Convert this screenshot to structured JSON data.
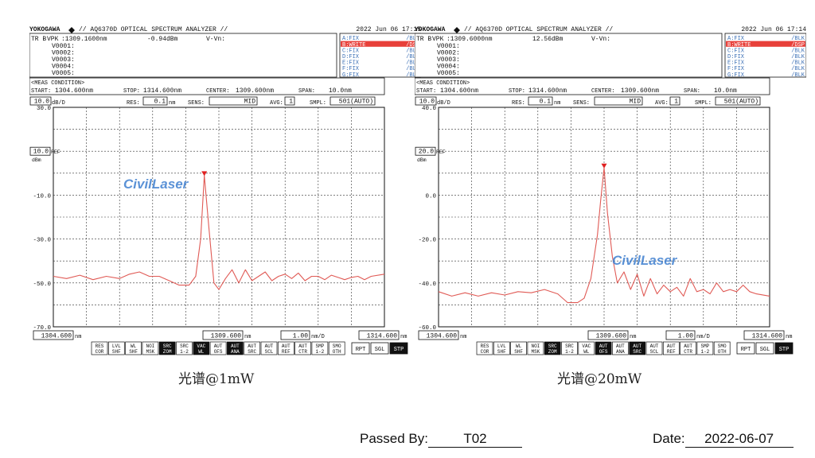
{
  "screens": [
    {
      "brand": "YOKOGAWA",
      "model": "// AQ6370D OPTICAL SPECTRUM ANALYZER //",
      "timestamp": "2022 Jun 06 17:15",
      "header_tr": "TR B",
      "header_marker_label": "VPK",
      "marker_wavelength": ":1309.1600nm",
      "marker_level": "-0.94dBm",
      "v_vn_label": "V-Vn:",
      "v_markers": [
        "V0001:",
        "V0002:",
        "V0003:",
        "V0004:",
        "V0005:"
      ],
      "traces": [
        {
          "label": "A:FIX",
          "mode": "/BLK",
          "active": false
        },
        {
          "label": "B:WRITE",
          "mode": "/DSP",
          "active": true
        },
        {
          "label": "C:FIX",
          "mode": "/BLK",
          "active": false
        },
        {
          "label": "D:FIX",
          "mode": "/BLK",
          "active": false
        },
        {
          "label": "E:FIX",
          "mode": "/BLK",
          "active": false
        },
        {
          "label": "F:FIX",
          "mode": "/BLK",
          "active": false
        },
        {
          "label": "G:FIX",
          "mode": "/BLK",
          "active": false
        }
      ],
      "meas_condition_label": "<MEAS CONDITION>",
      "start_label": "START:",
      "start_value": "1304.600nm",
      "stop_label": "STOP:",
      "stop_value": "1314.600nm",
      "center_label": "CENTER:",
      "center_value": "1309.600nm",
      "span_label": "SPAN:",
      "span_value": "10.0nm",
      "scale_value": "10.0",
      "scale_unit": "dB/D",
      "res_label": "RES:",
      "res_value": "0.1",
      "res_unit": "nm",
      "sens_label": "SENS:",
      "sens_value": "MID",
      "avg_label": "AVG:",
      "avg_value": "1",
      "smpl_label": "SMPL:",
      "smpl_value": "501(AUTO)",
      "ref_value": "10.0",
      "ref_unit": "dBm",
      "ref_label": "REF",
      "bottom_start": "1304.600",
      "bottom_center": "1309.600",
      "bottom_per_div": "1.00",
      "bottom_stop": "1314.600",
      "unit_nm": "nm",
      "unit_nmd": "nm/D",
      "softkeys": [
        [
          "RES",
          "COR"
        ],
        [
          "LVL",
          "SHF"
        ],
        [
          "WL",
          "SHF"
        ],
        [
          "NOI",
          "MSK"
        ],
        [
          "SRC",
          "ZOM"
        ],
        [
          "SRC",
          "1-2"
        ],
        [
          "VAC",
          "WL"
        ],
        [
          "AUT",
          "OFS"
        ],
        [
          "AUT",
          "ANA"
        ],
        [
          "AUT",
          "SRC"
        ],
        [
          "AUT",
          "SCL"
        ],
        [
          "AUT",
          "REF"
        ],
        [
          "AUT",
          "CTR"
        ],
        [
          "SMP",
          "1-2"
        ],
        [
          "SMO",
          "OTH"
        ]
      ],
      "softkeys_active": [
        4,
        6,
        8
      ],
      "action_keys": [
        "RPT",
        "SGL",
        "STP"
      ],
      "watermark": "CivilLaser",
      "caption": "光谱@1mW",
      "chart_data": {
        "type": "line",
        "xlabel": "",
        "ylabel": "",
        "xlim": [
          1304.6,
          1314.6
        ],
        "ylim": [
          -70,
          30
        ],
        "y_ticks": [
          30,
          -10,
          -30,
          -50,
          -70
        ],
        "y_tick_labels": [
          "30.0",
          "-10.0",
          "-30.0",
          "-50.0",
          "-70.0"
        ],
        "grid": true,
        "series": [
          {
            "x": [
              1304.6,
              1305.0,
              1305.4,
              1305.8,
              1306.2,
              1306.6,
              1306.9,
              1307.2,
              1307.5,
              1307.8,
              1308.1,
              1308.4,
              1308.7,
              1308.9,
              1309.05,
              1309.16,
              1309.3,
              1309.45,
              1309.6,
              1309.8,
              1310.0,
              1310.2,
              1310.4,
              1310.6,
              1310.8,
              1311.0,
              1311.2,
              1311.4,
              1311.6,
              1311.8,
              1312.0,
              1312.2,
              1312.4,
              1312.6,
              1312.8,
              1313.0,
              1313.2,
              1313.4,
              1313.6,
              1313.8,
              1314.0,
              1314.2,
              1314.6
            ],
            "y": [
              -47,
              -48,
              -46.5,
              -48.5,
              -47,
              -48,
              -46,
              -45,
              -47,
              -47,
              -49,
              -51,
              -51,
              -47,
              -30,
              -1,
              -25,
              -50,
              -53,
              -48,
              -44,
              -50,
              -44,
              -49,
              -47,
              -45,
              -49,
              -47,
              -46,
              -48,
              -45.5,
              -49,
              -47,
              -47,
              -48.5,
              -46.5,
              -47.5,
              -48.5,
              -47.5,
              -47,
              -48.5,
              -47,
              -46
            ]
          }
        ],
        "marker": {
          "x": 1309.16,
          "y": -0.94
        }
      }
    },
    {
      "brand": "YOKOGAWA",
      "model": "// AQ6370D OPTICAL SPECTRUM ANALYZER //",
      "timestamp": "2022 Jun 06 17:14",
      "header_tr": "TR B",
      "header_marker_label": "VPK",
      "marker_wavelength": ":1309.6000nm",
      "marker_level": "12.56dBm",
      "v_vn_label": "V-Vn:",
      "v_markers": [
        "V0001:",
        "V0002:",
        "V0003:",
        "V0004:",
        "V0005:"
      ],
      "traces": [
        {
          "label": "A:FIX",
          "mode": "/BLK",
          "active": false
        },
        {
          "label": "B:WRITE",
          "mode": "/DSP",
          "active": true
        },
        {
          "label": "C:FIX",
          "mode": "/BLK",
          "active": false
        },
        {
          "label": "D:FIX",
          "mode": "/BLK",
          "active": false
        },
        {
          "label": "E:FIX",
          "mode": "/BLK",
          "active": false
        },
        {
          "label": "F:FIX",
          "mode": "/BLK",
          "active": false
        },
        {
          "label": "G:FIX",
          "mode": "/BLK",
          "active": false
        }
      ],
      "meas_condition_label": "<MEAS CONDITION>",
      "start_label": "START:",
      "start_value": "1304.600nm",
      "stop_label": "STOP:",
      "stop_value": "1314.600nm",
      "center_label": "CENTER:",
      "center_value": "1309.600nm",
      "span_label": "SPAN:",
      "span_value": "10.0nm",
      "scale_value": "10.0",
      "scale_unit": "dB/D",
      "res_label": "RES:",
      "res_value": "0.1",
      "res_unit": "nm",
      "sens_label": "SENS:",
      "sens_value": "MID",
      "avg_label": "AVG:",
      "avg_value": "1",
      "smpl_label": "SMPL:",
      "smpl_value": "501(AUTO)",
      "ref_value": "20.0",
      "ref_unit": "dBm",
      "ref_label": "REF",
      "bottom_start": "1304.600",
      "bottom_center": "1309.600",
      "bottom_per_div": "1.00",
      "bottom_stop": "1314.600",
      "unit_nm": "nm",
      "unit_nmd": "nm/D",
      "softkeys": [
        [
          "RES",
          "COR"
        ],
        [
          "LVL",
          "SHF"
        ],
        [
          "WL",
          "SHF"
        ],
        [
          "NOI",
          "MSK"
        ],
        [
          "SRC",
          "ZOM"
        ],
        [
          "SRC",
          "1-2"
        ],
        [
          "VAC",
          "WL"
        ],
        [
          "AUT",
          "OFS"
        ],
        [
          "AUT",
          "ANA"
        ],
        [
          "AUT",
          "SRC"
        ],
        [
          "AUT",
          "SCL"
        ],
        [
          "AUT",
          "REF"
        ],
        [
          "AUT",
          "CTR"
        ],
        [
          "SMP",
          "1-2"
        ],
        [
          "SMO",
          "OTH"
        ]
      ],
      "softkeys_active": [
        4,
        7,
        9
      ],
      "action_keys": [
        "RPT",
        "SGL",
        "STP"
      ],
      "watermark": "CivilLaser",
      "caption": "光谱@20mW",
      "chart_data": {
        "type": "line",
        "xlabel": "",
        "ylabel": "",
        "xlim": [
          1304.6,
          1314.6
        ],
        "ylim": [
          -60,
          40
        ],
        "y_ticks": [
          40,
          0,
          -20,
          -40,
          -60
        ],
        "y_tick_labels": [
          "40.0",
          "0.0",
          "-20.0",
          "-40.0",
          "-60.0"
        ],
        "grid": true,
        "series": [
          {
            "x": [
              1304.6,
              1305.0,
              1305.4,
              1305.8,
              1306.2,
              1306.6,
              1307.0,
              1307.4,
              1307.8,
              1308.2,
              1308.5,
              1308.8,
              1309.0,
              1309.2,
              1309.4,
              1309.5,
              1309.6,
              1309.7,
              1309.85,
              1310.0,
              1310.2,
              1310.4,
              1310.6,
              1310.8,
              1311.0,
              1311.2,
              1311.4,
              1311.6,
              1311.8,
              1312.0,
              1312.2,
              1312.4,
              1312.6,
              1312.8,
              1313.0,
              1313.2,
              1313.4,
              1313.6,
              1313.8,
              1314.0,
              1314.2,
              1314.6
            ],
            "y": [
              -44,
              -46,
              -44.5,
              -46,
              -44.5,
              -45.5,
              -44,
              -44.5,
              -43,
              -45,
              -49,
              -49,
              -47,
              -38,
              -18,
              -2,
              12.5,
              -8,
              -28,
              -40,
              -35,
              -43,
              -36,
              -46,
              -38,
              -45,
              -41,
              -44,
              -42,
              -46,
              -38,
              -44,
              -43,
              -45,
              -40,
              -44,
              -43,
              -44,
              -41,
              -44,
              -45,
              -46
            ]
          }
        ],
        "marker": {
          "x": 1309.6,
          "y": 12.56
        }
      }
    }
  ],
  "footer": {
    "passed_label": "Passed  By:",
    "passed_value": "T02",
    "date_label": "Date:",
    "date_value": "2022-06-07"
  },
  "colors": {
    "trace": "#e05a55",
    "marker": "#e02020",
    "trace_label": "#3b6fb5",
    "active_trace_bg": "#e8403a",
    "watermark_blue": "#3f7fd0",
    "watermark_grey": "#8a9aa8"
  }
}
